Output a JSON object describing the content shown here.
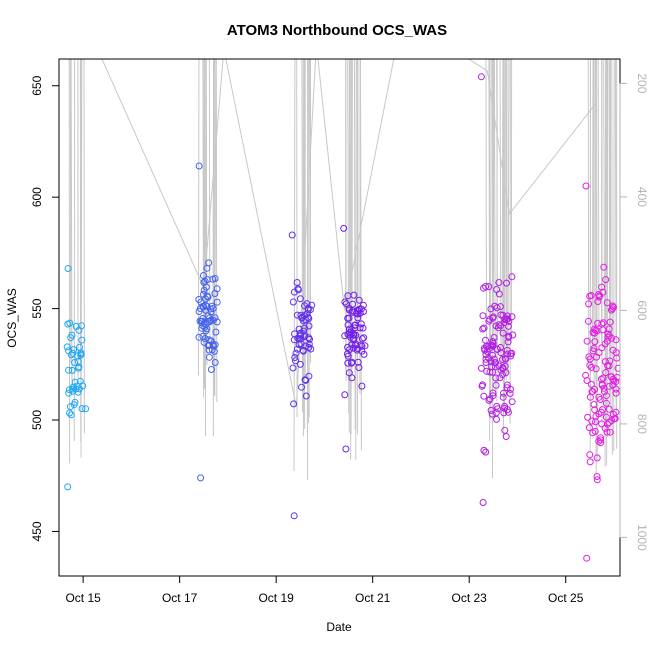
{
  "chart_data": {
    "type": "scatter",
    "title": "ATOM3 Northbound OCS_WAS",
    "xlabel": "Date",
    "ylabel": "OCS_WAS",
    "x_ticks": [
      "Oct 15",
      "Oct 17",
      "Oct 19",
      "Oct 21",
      "Oct 23",
      "Oct 25"
    ],
    "y_ticks": [
      450,
      500,
      550,
      600,
      650
    ],
    "y2_ticks": [
      200,
      400,
      600,
      800,
      1000
    ],
    "xlim": [
      "2016-10-14 12:00",
      "2016-10-26 03:00"
    ],
    "ylim": [
      430,
      662
    ],
    "y2lim": [
      1068,
      157
    ],
    "y2_reversed": true,
    "grid": false,
    "colors": {
      "points_start": "#1EA8F5",
      "points_mid": "#6A1EE8",
      "points_end": "#E21EE2",
      "secondary_line": "#c8c8c8",
      "axis": "#000000",
      "secondary_axis": "#b4b4b4"
    },
    "flights": [
      {
        "date": "2016-10-14 20:00",
        "n": 45,
        "center": 524,
        "sd": 14,
        "min": 470,
        "max": 568
      },
      {
        "date": "2016-10-17 14:00",
        "n": 70,
        "center": 546,
        "sd": 15,
        "min": 474,
        "max": 614
      },
      {
        "date": "2016-10-19 13:00",
        "n": 60,
        "center": 538,
        "sd": 17,
        "min": 457,
        "max": 583
      },
      {
        "date": "2016-10-20 15:00",
        "n": 70,
        "center": 538,
        "sd": 13,
        "min": 487,
        "max": 586
      },
      {
        "date": "2016-10-23 14:00",
        "n": 120,
        "center": 530,
        "sd": 25,
        "min": 463,
        "max": 654
      },
      {
        "date": "2016-10-25 18:00",
        "n": 120,
        "center": 518,
        "sd": 30,
        "min": 438,
        "max": 605
      }
    ],
    "secondary_series": {
      "name": "",
      "x": [
        "2016-10-15 06:00",
        "2016-10-17 12:00",
        "2016-10-17 22:00",
        "2016-10-19 10:00",
        "2016-10-19 20:00",
        "2016-10-20 10:00",
        "2016-10-21 12:00",
        "2016-10-22 12:00",
        "2016-10-23 09:00",
        "2016-10-23 20:00",
        "2016-10-25 15:00"
      ],
      "y": [
        130,
        560,
        140,
        770,
        130,
        600,
        130,
        130,
        178,
        430,
        235
      ]
    }
  }
}
